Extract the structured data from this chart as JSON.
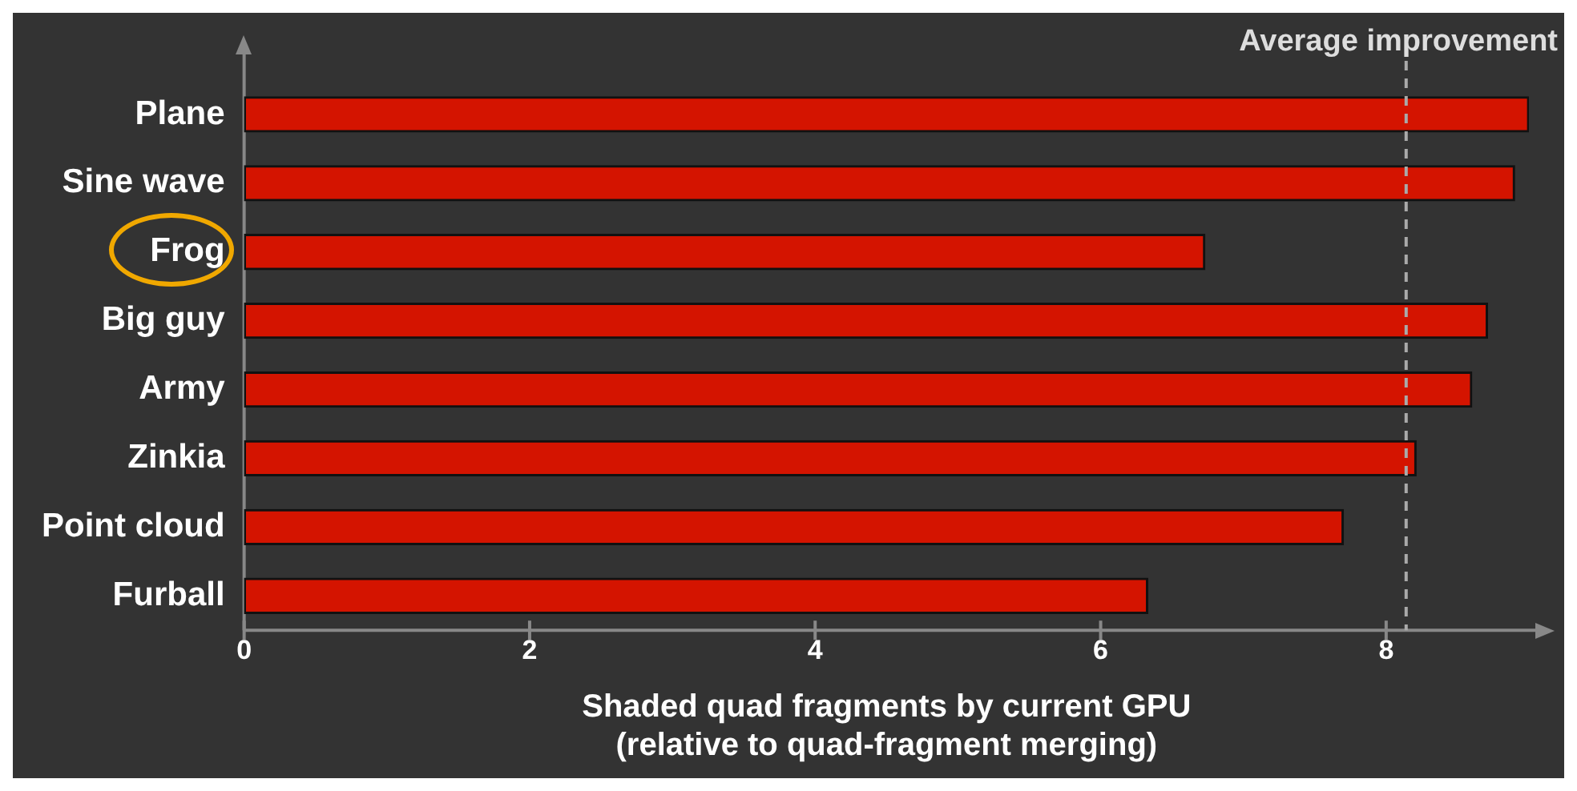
{
  "chart_data": {
    "type": "bar",
    "orientation": "horizontal",
    "categories": [
      "Plane",
      "Sine wave",
      "Frog",
      "Big guy",
      "Army",
      "Zinkia",
      "Point cloud",
      "Furball"
    ],
    "values": [
      9.0,
      8.9,
      6.73,
      8.71,
      8.6,
      8.21,
      7.7,
      6.33
    ],
    "color": "#d41400",
    "xlim": [
      0,
      9
    ],
    "xticks": [
      0,
      2,
      4,
      6,
      8
    ],
    "xlabel": "Shaded quad fragments by current GPU\n(relative to quad-fragment merging)",
    "ref_lines": [
      {
        "axis": "x",
        "value": 8.14,
        "label": "Average improvement",
        "color": "#aaaaaa",
        "line_style": "dashed"
      }
    ],
    "grid": false,
    "legend": false
  }
}
